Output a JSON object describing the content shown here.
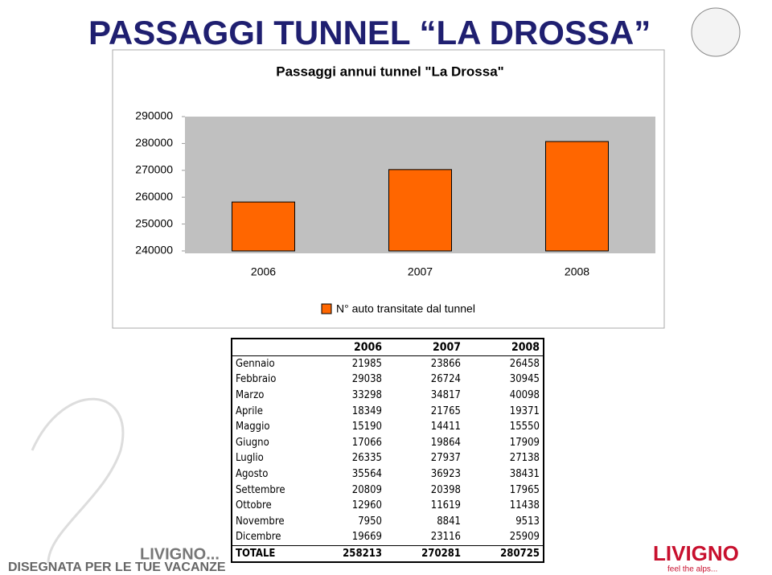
{
  "header": {
    "title": "PASSAGGI TUNNEL “LA DROSSA”"
  },
  "chart_data": {
    "type": "bar",
    "title": "Passaggi annui tunnel \"La Drossa\"",
    "categories": [
      "2006",
      "2007",
      "2008"
    ],
    "series": [
      {
        "name": "N° auto transitate dal tunnel",
        "color": "#ff6600",
        "values": [
          258213,
          270281,
          280725
        ]
      }
    ],
    "ylim": [
      240000,
      290000
    ],
    "yticks": [
      240000,
      250000,
      260000,
      270000,
      280000,
      290000
    ],
    "grid": false,
    "legend": "bottom"
  },
  "table": {
    "columns": [
      "2006",
      "2007",
      "2008"
    ],
    "rows": [
      [
        "Gennaio",
        21985,
        23866,
        26458
      ],
      [
        "Febbraio",
        29038,
        26724,
        30945
      ],
      [
        "Marzo",
        33298,
        34817,
        40098
      ],
      [
        "Aprile",
        18349,
        21765,
        19371
      ],
      [
        "Maggio",
        15190,
        14411,
        15550
      ],
      [
        "Giugno",
        17066,
        19864,
        17909
      ],
      [
        "Luglio",
        26335,
        27937,
        27138
      ],
      [
        "Agosto",
        35564,
        36923,
        38431
      ],
      [
        "Settembre",
        20809,
        20398,
        17965
      ],
      [
        "Ottobre",
        12960,
        11619,
        11438
      ],
      [
        "Novembre",
        7950,
        8841,
        9513
      ],
      [
        "Dicembre",
        19669,
        23116,
        25909
      ],
      [
        "TOTALE",
        258213,
        270281,
        280725
      ]
    ]
  },
  "logos": {
    "left_name": "LIVIGNO...",
    "left_slogan": "DISEGNATA PER LE TUE VACANZE",
    "right_name": "LIVIGNO",
    "right_slogan": "feel the alps..."
  }
}
